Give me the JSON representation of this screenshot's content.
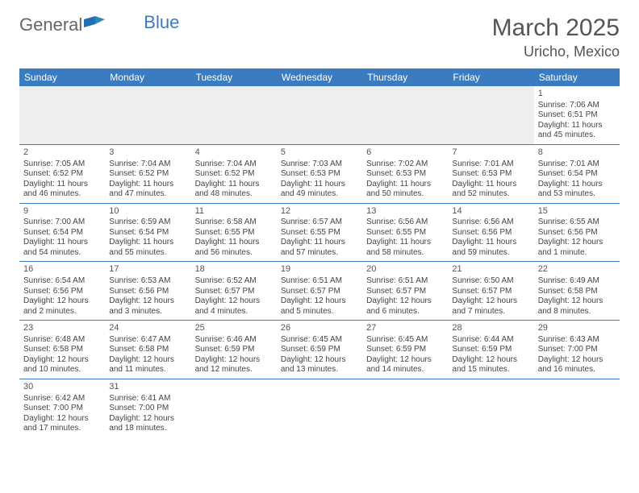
{
  "logo": {
    "part1": "General",
    "part2": "Blue"
  },
  "title": {
    "month": "March 2025",
    "location": "Uricho, Mexico"
  },
  "colors": {
    "header_bg": "#3b7bbf",
    "header_fg": "#ffffff",
    "border": "#3b7bbf",
    "empty_bg": "#eeeeee",
    "text": "#444444"
  },
  "weekdays": [
    "Sunday",
    "Monday",
    "Tuesday",
    "Wednesday",
    "Thursday",
    "Friday",
    "Saturday"
  ],
  "days": {
    "1": {
      "sr": "Sunrise: 7:06 AM",
      "ss": "Sunset: 6:51 PM",
      "dl": "Daylight: 11 hours and 45 minutes."
    },
    "2": {
      "sr": "Sunrise: 7:05 AM",
      "ss": "Sunset: 6:52 PM",
      "dl": "Daylight: 11 hours and 46 minutes."
    },
    "3": {
      "sr": "Sunrise: 7:04 AM",
      "ss": "Sunset: 6:52 PM",
      "dl": "Daylight: 11 hours and 47 minutes."
    },
    "4": {
      "sr": "Sunrise: 7:04 AM",
      "ss": "Sunset: 6:52 PM",
      "dl": "Daylight: 11 hours and 48 minutes."
    },
    "5": {
      "sr": "Sunrise: 7:03 AM",
      "ss": "Sunset: 6:53 PM",
      "dl": "Daylight: 11 hours and 49 minutes."
    },
    "6": {
      "sr": "Sunrise: 7:02 AM",
      "ss": "Sunset: 6:53 PM",
      "dl": "Daylight: 11 hours and 50 minutes."
    },
    "7": {
      "sr": "Sunrise: 7:01 AM",
      "ss": "Sunset: 6:53 PM",
      "dl": "Daylight: 11 hours and 52 minutes."
    },
    "8": {
      "sr": "Sunrise: 7:01 AM",
      "ss": "Sunset: 6:54 PM",
      "dl": "Daylight: 11 hours and 53 minutes."
    },
    "9": {
      "sr": "Sunrise: 7:00 AM",
      "ss": "Sunset: 6:54 PM",
      "dl": "Daylight: 11 hours and 54 minutes."
    },
    "10": {
      "sr": "Sunrise: 6:59 AM",
      "ss": "Sunset: 6:54 PM",
      "dl": "Daylight: 11 hours and 55 minutes."
    },
    "11": {
      "sr": "Sunrise: 6:58 AM",
      "ss": "Sunset: 6:55 PM",
      "dl": "Daylight: 11 hours and 56 minutes."
    },
    "12": {
      "sr": "Sunrise: 6:57 AM",
      "ss": "Sunset: 6:55 PM",
      "dl": "Daylight: 11 hours and 57 minutes."
    },
    "13": {
      "sr": "Sunrise: 6:56 AM",
      "ss": "Sunset: 6:55 PM",
      "dl": "Daylight: 11 hours and 58 minutes."
    },
    "14": {
      "sr": "Sunrise: 6:56 AM",
      "ss": "Sunset: 6:56 PM",
      "dl": "Daylight: 11 hours and 59 minutes."
    },
    "15": {
      "sr": "Sunrise: 6:55 AM",
      "ss": "Sunset: 6:56 PM",
      "dl": "Daylight: 12 hours and 1 minute."
    },
    "16": {
      "sr": "Sunrise: 6:54 AM",
      "ss": "Sunset: 6:56 PM",
      "dl": "Daylight: 12 hours and 2 minutes."
    },
    "17": {
      "sr": "Sunrise: 6:53 AM",
      "ss": "Sunset: 6:56 PM",
      "dl": "Daylight: 12 hours and 3 minutes."
    },
    "18": {
      "sr": "Sunrise: 6:52 AM",
      "ss": "Sunset: 6:57 PM",
      "dl": "Daylight: 12 hours and 4 minutes."
    },
    "19": {
      "sr": "Sunrise: 6:51 AM",
      "ss": "Sunset: 6:57 PM",
      "dl": "Daylight: 12 hours and 5 minutes."
    },
    "20": {
      "sr": "Sunrise: 6:51 AM",
      "ss": "Sunset: 6:57 PM",
      "dl": "Daylight: 12 hours and 6 minutes."
    },
    "21": {
      "sr": "Sunrise: 6:50 AM",
      "ss": "Sunset: 6:57 PM",
      "dl": "Daylight: 12 hours and 7 minutes."
    },
    "22": {
      "sr": "Sunrise: 6:49 AM",
      "ss": "Sunset: 6:58 PM",
      "dl": "Daylight: 12 hours and 8 minutes."
    },
    "23": {
      "sr": "Sunrise: 6:48 AM",
      "ss": "Sunset: 6:58 PM",
      "dl": "Daylight: 12 hours and 10 minutes."
    },
    "24": {
      "sr": "Sunrise: 6:47 AM",
      "ss": "Sunset: 6:58 PM",
      "dl": "Daylight: 12 hours and 11 minutes."
    },
    "25": {
      "sr": "Sunrise: 6:46 AM",
      "ss": "Sunset: 6:59 PM",
      "dl": "Daylight: 12 hours and 12 minutes."
    },
    "26": {
      "sr": "Sunrise: 6:45 AM",
      "ss": "Sunset: 6:59 PM",
      "dl": "Daylight: 12 hours and 13 minutes."
    },
    "27": {
      "sr": "Sunrise: 6:45 AM",
      "ss": "Sunset: 6:59 PM",
      "dl": "Daylight: 12 hours and 14 minutes."
    },
    "28": {
      "sr": "Sunrise: 6:44 AM",
      "ss": "Sunset: 6:59 PM",
      "dl": "Daylight: 12 hours and 15 minutes."
    },
    "29": {
      "sr": "Sunrise: 6:43 AM",
      "ss": "Sunset: 7:00 PM",
      "dl": "Daylight: 12 hours and 16 minutes."
    },
    "30": {
      "sr": "Sunrise: 6:42 AM",
      "ss": "Sunset: 7:00 PM",
      "dl": "Daylight: 12 hours and 17 minutes."
    },
    "31": {
      "sr": "Sunrise: 6:41 AM",
      "ss": "Sunset: 7:00 PM",
      "dl": "Daylight: 12 hours and 18 minutes."
    }
  },
  "layout": {
    "weeks": [
      [
        null,
        null,
        null,
        null,
        null,
        null,
        "1"
      ],
      [
        "2",
        "3",
        "4",
        "5",
        "6",
        "7",
        "8"
      ],
      [
        "9",
        "10",
        "11",
        "12",
        "13",
        "14",
        "15"
      ],
      [
        "16",
        "17",
        "18",
        "19",
        "20",
        "21",
        "22"
      ],
      [
        "23",
        "24",
        "25",
        "26",
        "27",
        "28",
        "29"
      ],
      [
        "30",
        "31",
        null,
        null,
        null,
        null,
        null
      ]
    ]
  }
}
